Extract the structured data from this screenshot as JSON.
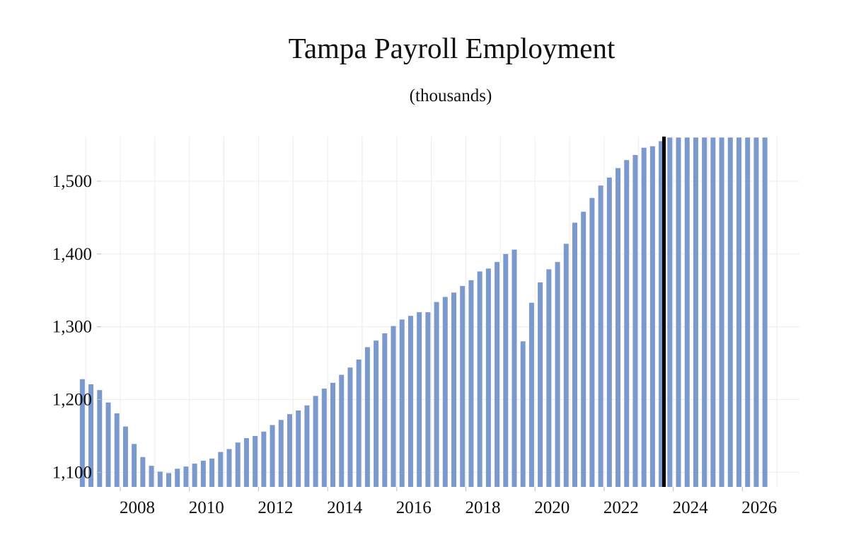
{
  "chart_data": {
    "type": "bar",
    "title": "Tampa Payroll Employment",
    "subtitle": "(thousands)",
    "xlabel": "",
    "ylabel": "",
    "ylim": [
      1080,
      1560
    ],
    "yticks": [
      1100,
      1200,
      1300,
      1400,
      1500
    ],
    "ytick_labels": [
      "1,100",
      "1,200",
      "1,300",
      "1,400",
      "1,500"
    ],
    "xticks": [
      "2008",
      "2010",
      "2012",
      "2014",
      "2016",
      "2018",
      "2020",
      "2022",
      "2024",
      "2026"
    ],
    "xlim": [
      2007.0,
      2027.3
    ],
    "grid": true,
    "forecast_marker": 2024.08,
    "colors": {
      "bar": "#7b99cc",
      "marker": "#000000",
      "grid": "#ececec"
    },
    "x": [
      2007.25,
      2007.5,
      2007.75,
      2008.0,
      2008.25,
      2008.5,
      2008.75,
      2009.0,
      2009.25,
      2009.5,
      2009.75,
      2010.0,
      2010.25,
      2010.5,
      2010.75,
      2011.0,
      2011.25,
      2011.5,
      2011.75,
      2012.0,
      2012.25,
      2012.5,
      2012.75,
      2013.0,
      2013.25,
      2013.5,
      2013.75,
      2014.0,
      2014.25,
      2014.5,
      2014.75,
      2015.0,
      2015.25,
      2015.5,
      2015.75,
      2016.0,
      2016.25,
      2016.5,
      2016.75,
      2017.0,
      2017.25,
      2017.5,
      2017.75,
      2018.0,
      2018.25,
      2018.5,
      2018.75,
      2019.0,
      2019.25,
      2019.5,
      2019.75,
      2020.0,
      2020.25,
      2020.5,
      2020.75,
      2021.0,
      2021.25,
      2021.5,
      2021.75,
      2022.0,
      2022.25,
      2022.5,
      2022.75,
      2023.0,
      2023.25,
      2023.5,
      2023.75,
      2024.0,
      2024.25,
      2024.5,
      2024.75,
      2025.0,
      2025.25,
      2025.5,
      2025.75,
      2026.0,
      2026.25,
      2026.5,
      2026.75,
      2027.0
    ],
    "values": [
      1228,
      1221,
      1213,
      1196,
      1181,
      1163,
      1139,
      1121,
      1109,
      1101,
      1099,
      1105,
      1108,
      1112,
      1116,
      1119,
      1128,
      1132,
      1141,
      1147,
      1150,
      1156,
      1165,
      1172,
      1180,
      1185,
      1192,
      1205,
      1215,
      1223,
      1234,
      1244,
      1255,
      1272,
      1281,
      1291,
      1301,
      1310,
      1315,
      1320,
      1320,
      1334,
      1341,
      1347,
      1356,
      1364,
      1376,
      1380,
      1389,
      1400,
      1406,
      1280,
      1333,
      1361,
      1379,
      1389,
      1414,
      1443,
      1458,
      1477,
      1494,
      1505,
      1518,
      1529,
      1536,
      1546,
      1548,
      1555,
      1560,
      1560,
      1560,
      1560,
      1560,
      1560,
      1560,
      1560,
      1560,
      1560,
      1560,
      1560
    ]
  }
}
